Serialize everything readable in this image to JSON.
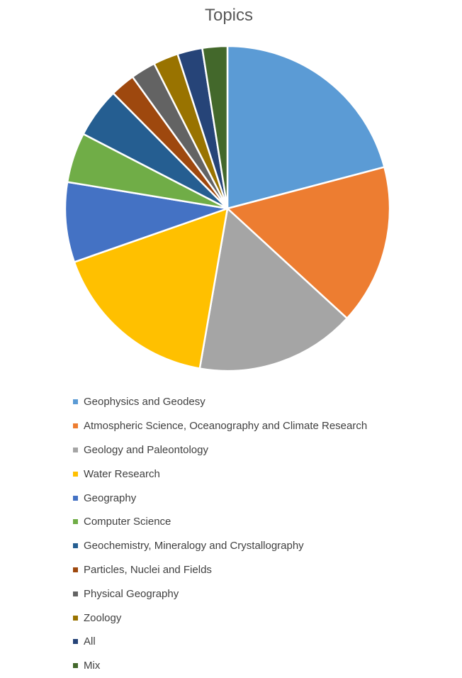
{
  "chart_data": {
    "type": "pie",
    "title": "Topics",
    "legend_position": "bottom",
    "slices": [
      {
        "label": "Geophysics and Geodesy",
        "value": 21,
        "color": "#5B9BD5"
      },
      {
        "label": "Atmospheric Science, Oceanography and Climate Research",
        "value": 16,
        "color": "#ED7D31"
      },
      {
        "label": "Geology and Paleontology",
        "value": 16,
        "color": "#A5A5A5"
      },
      {
        "label": "Water Research",
        "value": 17,
        "color": "#FFC000"
      },
      {
        "label": "Geography",
        "value": 8,
        "color": "#4472C4"
      },
      {
        "label": "Computer Science",
        "value": 5,
        "color": "#70AD47"
      },
      {
        "label": "Geochemistry, Mineralogy and Crystallography",
        "value": 5,
        "color": "#255E91"
      },
      {
        "label": "Particles, Nuclei and Fields",
        "value": 2.5,
        "color": "#9E480E"
      },
      {
        "label": "Physical Geography",
        "value": 2.5,
        "color": "#636363"
      },
      {
        "label": "Zoology",
        "value": 2.5,
        "color": "#997300"
      },
      {
        "label": "All",
        "value": 2.5,
        "color": "#264478"
      },
      {
        "label": "Mix",
        "value": 2.5,
        "color": "#43682B"
      }
    ]
  }
}
